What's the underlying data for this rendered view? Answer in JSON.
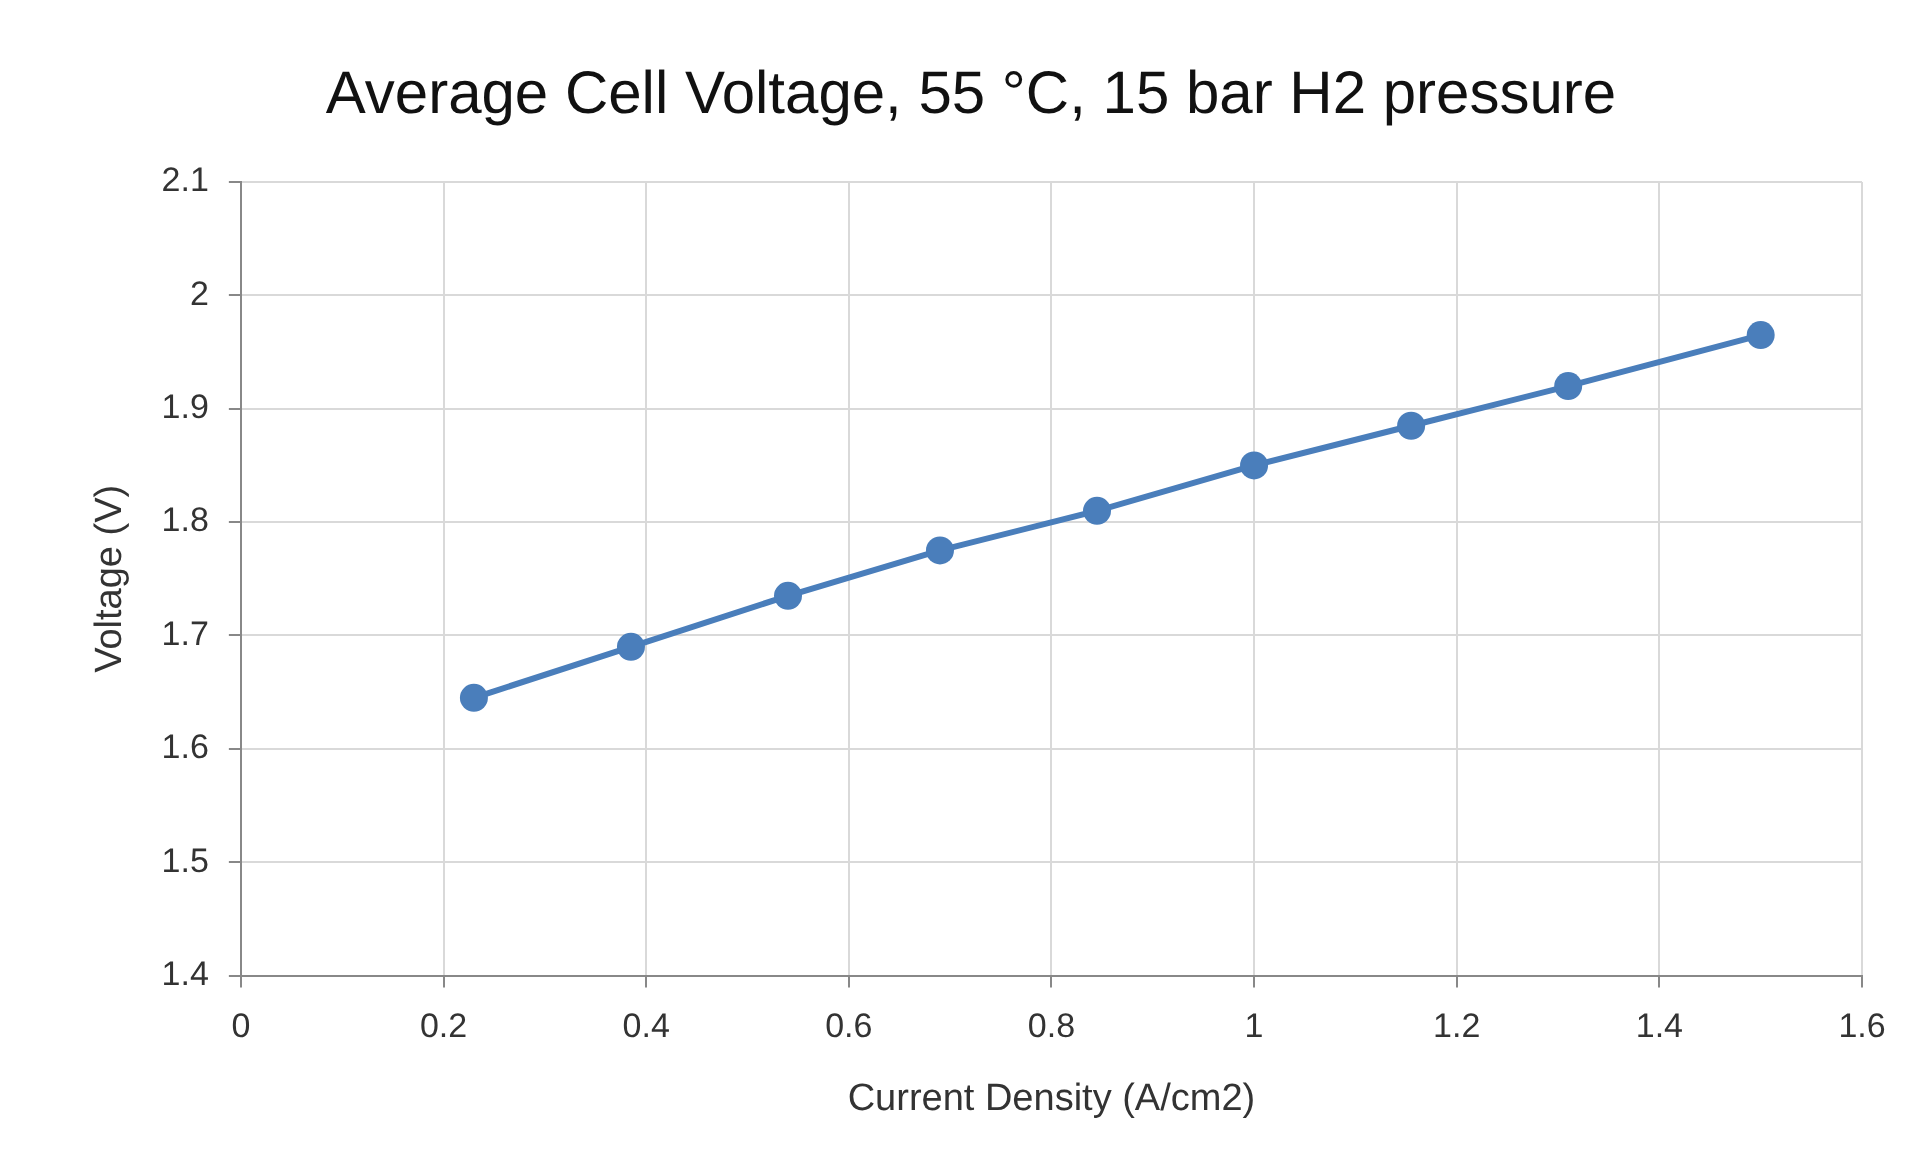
{
  "chart_data": {
    "type": "line",
    "title": "Average Cell Voltage, 55 °C, 15 bar H2 pressure",
    "xlabel": "Current Density (A/cm2)",
    "ylabel": "Voltage (V)",
    "x": [
      0.23,
      0.385,
      0.54,
      0.69,
      0.845,
      1.0,
      1.155,
      1.31,
      1.5
    ],
    "series": [
      {
        "color": "#4a7ebb",
        "values": [
          1.645,
          1.69,
          1.735,
          1.775,
          1.81,
          1.85,
          1.885,
          1.92,
          1.965
        ]
      }
    ],
    "xlim": [
      0,
      1.6
    ],
    "xticks": [
      0,
      0.2,
      0.4,
      0.6,
      0.8,
      1,
      1.2,
      1.4,
      1.6
    ],
    "ylim": [
      1.4,
      2.1
    ],
    "yticks": [
      1.4,
      1.5,
      1.6,
      1.7,
      1.8,
      1.9,
      2,
      2.1
    ],
    "grid": true,
    "legend": false,
    "marker": "circle",
    "line_style": "solid"
  }
}
